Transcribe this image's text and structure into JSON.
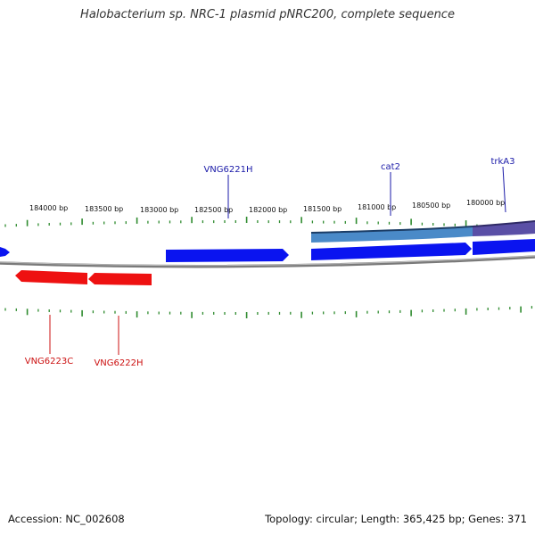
{
  "title": "Halobacterium sp. NRC-1 plasmid pNRC200, complete sequence",
  "footer": {
    "accession": "Accession: NC_002608",
    "summary": "Topology: circular; Length: 365,425 bp; Genes: 371"
  },
  "colors": {
    "forward": "#0a14f0",
    "reverse": "#ee1111",
    "backbone": "#888888",
    "ticks": "#2e8b2e",
    "forward_label": "#1a1aa8",
    "reverse_label": "#cc1111",
    "feature": "#4a8ac8"
  },
  "bp_labels": [
    "184000 bp",
    "183500 bp",
    "183000 bp",
    "182500 bp",
    "182000 bp",
    "181500 bp",
    "181000 bp",
    "180500 bp",
    "180000 bp"
  ],
  "forward_genes": [
    {
      "name": "VNG6221H",
      "label_color": "forward_label"
    },
    {
      "name": "cat2",
      "label_color": "forward_label"
    },
    {
      "name": "trkA3",
      "label_color": "forward_label"
    }
  ],
  "reverse_genes": [
    {
      "name": "VNG6223C"
    },
    {
      "name": "VNG6222H"
    }
  ]
}
